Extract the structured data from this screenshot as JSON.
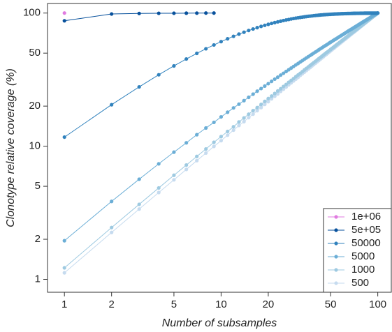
{
  "chart_data": {
    "type": "line",
    "markers": true,
    "xlog": true,
    "ylog": true,
    "legend": "bottom-right",
    "xlabel": "Number of subsamples",
    "ylabel": "Clonotype relative coverage (%)",
    "xlim": [
      0.78,
      122
    ],
    "ylim": [
      0.8,
      118
    ],
    "xticks": [
      1,
      2,
      5,
      10,
      20,
      50,
      100
    ],
    "yticks": [
      1,
      2,
      5,
      10,
      20,
      50,
      100
    ],
    "x": [
      1,
      2,
      3,
      4,
      5,
      6,
      7,
      8,
      9,
      10,
      11,
      12,
      13,
      14,
      15,
      16,
      17,
      18,
      19,
      20,
      21,
      22,
      23,
      24,
      25,
      26,
      27,
      28,
      29,
      30,
      31,
      32,
      33,
      34,
      35,
      36,
      37,
      38,
      39,
      40,
      41,
      42,
      43,
      44,
      45,
      46,
      47,
      48,
      49,
      50,
      51,
      52,
      53,
      54,
      55,
      56,
      57,
      58,
      59,
      60,
      61,
      62,
      63,
      64,
      65,
      66,
      67,
      68,
      69,
      70,
      71,
      72,
      73,
      74,
      75,
      76,
      77,
      78,
      79,
      80,
      81,
      82,
      83,
      84,
      85,
      86,
      87,
      88,
      89,
      90,
      91,
      92,
      93,
      94,
      95,
      96,
      97,
      98,
      99,
      100
    ],
    "series": [
      {
        "name": "1e+06",
        "color": "#e07be0",
        "x": [
          1
        ],
        "values": [
          100
        ]
      },
      {
        "name": "5e+05",
        "color": "#08519c",
        "x": [
          1,
          2,
          3,
          4,
          5,
          6,
          7,
          8,
          9
        ],
        "values": [
          87.5,
          98.4,
          99.3,
          99.6,
          99.7,
          99.8,
          99.9,
          100,
          100
        ]
      },
      {
        "name": "50000",
        "color": "#3182bd",
        "values": [
          11.7,
          20.5,
          27.9,
          34.4,
          40.1,
          45.2,
          49.8,
          53.9,
          57.6,
          61.0,
          64.1,
          66.9,
          69.5,
          71.8,
          74.0,
          75.9,
          77.7,
          79.4,
          80.9,
          82.3,
          83.6,
          84.8,
          85.9,
          86.9,
          87.9,
          88.7,
          89.5,
          90.3,
          91.0,
          91.6,
          92.2,
          92.7,
          93.2,
          93.7,
          94.1,
          94.5,
          94.9,
          95.2,
          95.6,
          95.9,
          96.2,
          96.4,
          96.7,
          96.9,
          97.1,
          97.3,
          97.5,
          97.6,
          97.8,
          97.9,
          98.1,
          98.2,
          98.3,
          98.4,
          98.5,
          98.6,
          98.7,
          98.8,
          98.9,
          98.9,
          99.0,
          99.1,
          99.1,
          99.2,
          99.2,
          99.3,
          99.3,
          99.4,
          99.4,
          99.5,
          99.5,
          99.5,
          99.6,
          99.6,
          99.6,
          99.6,
          99.7,
          99.7,
          99.7,
          99.7,
          99.7,
          99.8,
          99.8,
          99.8,
          99.8,
          99.8,
          99.8,
          99.8,
          99.8,
          99.8,
          99.9,
          99.9,
          99.9,
          99.9,
          99.9,
          99.9,
          99.9,
          99.9,
          99.9,
          100
        ]
      },
      {
        "name": "5000",
        "color": "#6baed6",
        "values": [
          1.95,
          3.85,
          5.65,
          7.37,
          9.02,
          10.6,
          12.2,
          13.7,
          15.1,
          16.6,
          18.0,
          19.4,
          20.7,
          22.0,
          23.3,
          24.6,
          25.9,
          27.1,
          28.3,
          29.5,
          30.7,
          31.9,
          33.0,
          34.2,
          35.3,
          36.4,
          37.5,
          38.6,
          39.7,
          40.8,
          41.8,
          42.9,
          43.9,
          45.0,
          46.0,
          47.0,
          48.0,
          49.0,
          50.0,
          51.0,
          51.9,
          52.9,
          53.9,
          54.8,
          55.8,
          56.7,
          57.6,
          58.5,
          59.5,
          60.4,
          61.3,
          62.2,
          63.1,
          63.9,
          64.8,
          65.7,
          66.6,
          67.4,
          68.3,
          69.1,
          70.0,
          70.8,
          71.7,
          72.5,
          73.4,
          74.2,
          75.0,
          75.8,
          76.6,
          77.4,
          78.2,
          79.0,
          79.8,
          80.6,
          81.4,
          82.2,
          83.0,
          83.8,
          84.6,
          85.3,
          86.1,
          86.9,
          87.6,
          88.4,
          89.1,
          89.9,
          90.6,
          91.4,
          92.1,
          92.8,
          93.6,
          94.3,
          95.0,
          95.8,
          96.5,
          97.2,
          97.9,
          98.6,
          99.3,
          100
        ]
      },
      {
        "name": "1000",
        "color": "#9ecae1",
        "values": [
          1.22,
          2.45,
          3.66,
          4.86,
          6.05,
          7.22,
          8.38,
          9.53,
          10.7,
          11.8,
          12.9,
          14.0,
          15.2,
          16.3,
          17.4,
          18.5,
          19.5,
          20.6,
          21.7,
          22.8,
          23.8,
          24.9,
          26.0,
          27.0,
          28.1,
          29.1,
          30.2,
          31.2,
          32.2,
          33.3,
          34.3,
          35.3,
          36.3,
          37.4,
          38.4,
          39.4,
          40.4,
          41.4,
          42.4,
          43.4,
          44.4,
          45.4,
          46.4,
          47.4,
          48.4,
          49.4,
          50.4,
          51.3,
          52.3,
          53.3,
          54.3,
          55.2,
          56.2,
          57.2,
          58.2,
          59.1,
          60.1,
          61.0,
          62.0,
          63.0,
          63.9,
          64.9,
          65.8,
          66.8,
          67.7,
          68.7,
          69.6,
          70.6,
          71.5,
          72.4,
          73.4,
          74.3,
          75.3,
          76.2,
          77.1,
          78.1,
          79.0,
          79.9,
          80.8,
          81.8,
          82.7,
          83.6,
          84.5,
          85.5,
          86.4,
          87.3,
          88.2,
          89.1,
          90.0,
          90.9,
          91.9,
          92.8,
          93.7,
          94.6,
          95.5,
          96.4,
          97.3,
          98.2,
          99.1,
          100
        ]
      },
      {
        "name": "500",
        "color": "#c6dbef",
        "values": [
          1.12,
          2.25,
          3.37,
          4.49,
          5.59,
          6.69,
          7.79,
          8.88,
          9.96,
          11.0,
          12.1,
          13.2,
          14.3,
          15.3,
          16.4,
          17.4,
          18.5,
          19.5,
          20.6,
          21.6,
          22.7,
          23.7,
          24.7,
          25.8,
          26.8,
          27.8,
          28.9,
          29.9,
          30.9,
          31.9,
          32.9,
          34.0,
          35.0,
          36.0,
          37.0,
          38.0,
          39.0,
          40.0,
          41.0,
          42.0,
          43.0,
          44.0,
          45.0,
          46.0,
          47.0,
          48.0,
          49.0,
          50.0,
          51.0,
          52.0,
          53.0,
          54.0,
          54.9,
          55.9,
          56.9,
          57.9,
          58.9,
          59.8,
          60.8,
          61.8,
          62.8,
          63.7,
          64.7,
          65.7,
          66.6,
          67.6,
          68.6,
          69.6,
          70.5,
          71.5,
          72.4,
          73.4,
          74.4,
          75.3,
          76.3,
          77.2,
          78.2,
          79.2,
          80.1,
          81.1,
          82.0,
          83.0,
          83.9,
          84.9,
          85.8,
          86.8,
          87.7,
          88.7,
          89.6,
          90.6,
          91.5,
          92.5,
          93.4,
          94.4,
          95.3,
          96.2,
          97.2,
          98.1,
          99.1,
          100
        ]
      }
    ]
  }
}
